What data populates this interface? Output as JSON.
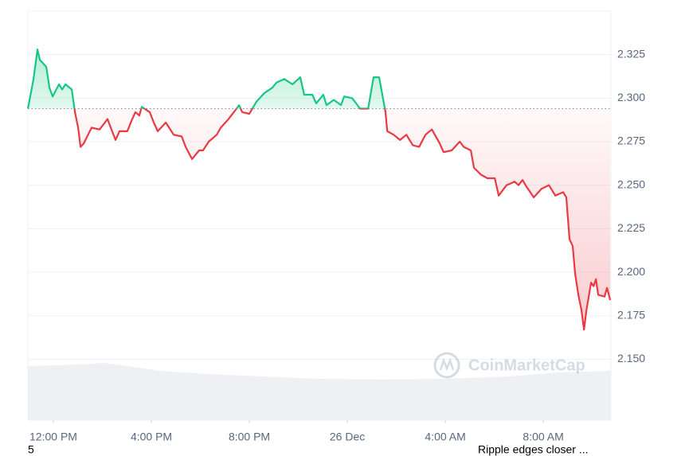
{
  "chart_data": {
    "type": "line",
    "watermark": "CoinMarketCap",
    "x": [
      -1.04,
      -0.81,
      -0.65,
      -0.55,
      -0.29,
      -0.16,
      -0.03,
      0.23,
      0.36,
      0.49,
      0.75,
      0.88,
      1.01,
      1.11,
      1.24,
      1.56,
      1.89,
      2.21,
      2.37,
      2.54,
      2.7,
      3.02,
      3.19,
      3.35,
      3.51,
      3.61,
      3.93,
      4.1,
      4.26,
      4.59,
      4.91,
      5.24,
      5.4,
      5.66,
      5.95,
      6.11,
      6.34,
      6.67,
      6.83,
      7.15,
      7.48,
      7.58,
      7.71,
      8.0,
      8.29,
      8.62,
      8.94,
      9.11,
      9.43,
      9.76,
      10.08,
      10.24,
      10.57,
      10.73,
      11.02,
      11.15,
      11.45,
      11.74,
      11.87,
      12.2,
      12.52,
      12.85,
      13.07,
      13.3,
      13.43,
      13.56,
      13.63,
      13.89,
      14.15,
      14.41,
      14.67,
      14.93,
      15.19,
      15.45,
      15.77,
      15.93,
      16.26,
      16.59,
      16.75,
      17.04,
      17.17,
      17.46,
      17.72,
      18.02,
      18.18,
      18.5,
      18.83,
      18.99,
      19.15,
      19.32,
      19.61,
      19.93,
      20.23,
      20.49,
      20.81,
      20.94,
      21.07,
      21.2,
      21.3,
      21.43,
      21.56,
      21.66,
      21.76,
      21.95,
      22.05,
      22.15,
      22.24,
      22.5,
      22.6,
      22.73
    ],
    "series": [
      {
        "values": [
          2.294,
          2.311,
          2.328,
          2.322,
          2.318,
          2.306,
          2.301,
          2.308,
          2.305,
          2.308,
          2.305,
          2.292,
          2.283,
          2.272,
          2.274,
          2.283,
          2.282,
          2.288,
          2.282,
          2.276,
          2.281,
          2.281,
          2.287,
          2.292,
          2.29,
          2.295,
          2.292,
          2.286,
          2.281,
          2.286,
          2.279,
          2.278,
          2.272,
          2.265,
          2.27,
          2.27,
          2.275,
          2.279,
          2.283,
          2.288,
          2.294,
          2.296,
          2.292,
          2.291,
          2.298,
          2.303,
          2.306,
          2.309,
          2.311,
          2.308,
          2.312,
          2.302,
          2.302,
          2.297,
          2.302,
          2.296,
          2.299,
          2.296,
          2.301,
          2.3,
          2.294,
          2.294,
          2.312,
          2.312,
          2.302,
          2.292,
          2.281,
          2.279,
          2.276,
          2.279,
          2.273,
          2.272,
          2.279,
          2.282,
          2.274,
          2.269,
          2.27,
          2.275,
          2.272,
          2.27,
          2.26,
          2.256,
          2.254,
          2.254,
          2.244,
          2.25,
          2.252,
          2.25,
          2.253,
          2.249,
          2.243,
          2.248,
          2.25,
          2.244,
          2.246,
          2.243,
          2.219,
          2.215,
          2.199,
          2.187,
          2.178,
          2.167,
          2.178,
          2.194,
          2.192,
          2.196,
          2.187,
          2.186,
          2.191,
          2.184
        ]
      }
    ],
    "baseline": 2.294,
    "up_color": "#16c784",
    "down_color": "#ea3943",
    "xlim": [
      -1.04,
      22.76
    ],
    "xticks": [
      {
        "value": 0,
        "label": "12:00 PM"
      },
      {
        "value": 4,
        "label": "4:00 PM"
      },
      {
        "value": 8,
        "label": "8:00 PM"
      },
      {
        "value": 12,
        "label": "26 Dec"
      },
      {
        "value": 16,
        "label": "4:00 AM"
      },
      {
        "value": 20,
        "label": "8:00 AM"
      }
    ],
    "ylim": [
      2.115,
      2.35
    ],
    "yticks": [
      {
        "value": 2.15,
        "label": "2.150"
      },
      {
        "value": 2.175,
        "label": "2.175"
      },
      {
        "value": 2.2,
        "label": "2.200"
      },
      {
        "value": 2.225,
        "label": "2.225"
      },
      {
        "value": 2.25,
        "label": "2.250"
      },
      {
        "value": 2.275,
        "label": "2.275"
      },
      {
        "value": 2.3,
        "label": "2.300"
      },
      {
        "value": 2.325,
        "label": "2.325"
      }
    ],
    "grid": true
  },
  "footer": [
    "5",
    "Ripple edges closer ..."
  ]
}
